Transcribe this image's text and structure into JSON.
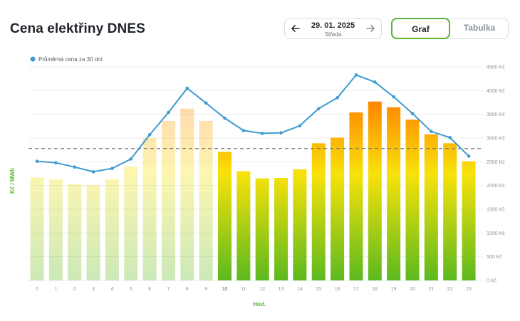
{
  "header": {
    "title": "Cena elektřiny DNES",
    "date": "29. 01. 2025",
    "weekday": "Středa",
    "tab_graph": "Graf",
    "tab_table": "Tabulka"
  },
  "icons": {
    "prev": "arrow-left-icon",
    "next": "arrow-right-icon"
  },
  "colors": {
    "line": "#3d9bd0",
    "grad_low": "#5cb91f",
    "grad_mid": "#f8e20a",
    "grad_high": "#ff7a00",
    "accent": "#58b531",
    "dashed": "#777777"
  },
  "chart_data": {
    "type": "bar",
    "categories": [
      "0",
      "1",
      "2",
      "3",
      "4",
      "5",
      "6",
      "7",
      "8",
      "9",
      "10",
      "11",
      "12",
      "13",
      "14",
      "15",
      "16",
      "17",
      "18",
      "19",
      "20",
      "21",
      "22",
      "23"
    ],
    "series": [
      {
        "values": [
          2170,
          2130,
          2030,
          2010,
          2130,
          2400,
          3000,
          3360,
          3620,
          3360,
          2710,
          2300,
          2150,
          2160,
          2340,
          2890,
          3010,
          3540,
          3770,
          3650,
          3390,
          3080,
          2890,
          2510
        ]
      },
      {
        "name": "Průměrná cena za 30 dní",
        "type": "line",
        "values": [
          2510,
          2480,
          2390,
          2290,
          2360,
          2560,
          3070,
          3540,
          4050,
          3740,
          3420,
          3160,
          3100,
          3110,
          3260,
          3620,
          3850,
          4330,
          4180,
          3870,
          3520,
          3140,
          3010,
          2620
        ]
      }
    ],
    "reference_line": 2780,
    "current_hour": "10",
    "past_hours_faded": true,
    "xlabel": "Hod.",
    "ylabel": "Kč / MWh",
    "y_ticks": [
      "0 Kč",
      "500 Kč",
      "1000 Kč",
      "1500 Kč",
      "2000 Kč",
      "2500 Kč",
      "3000 Kč",
      "3500 Kč",
      "4000 Kč",
      "4500 Kč"
    ],
    "ylim": [
      0,
      4500
    ],
    "grid": true,
    "legend_position": "top-left"
  }
}
